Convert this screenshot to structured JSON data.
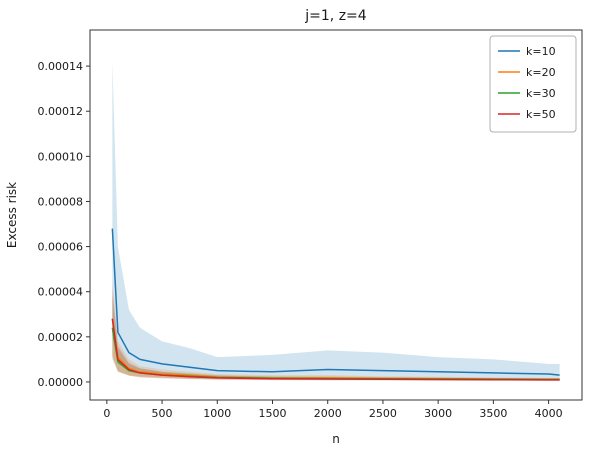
{
  "chart_data": {
    "type": "line",
    "title": "j=1, z=4",
    "xlabel": "n",
    "ylabel": "Excess risk",
    "xlim": [
      -152.5,
      4302.5
    ],
    "ylim": [
      -8e-06,
      0.000156
    ],
    "x_ticks": [
      0,
      500,
      1000,
      1500,
      2000,
      2500,
      3000,
      3500,
      4000
    ],
    "y_ticks": [
      0.0,
      2e-05,
      4e-05,
      6e-05,
      8e-05,
      0.0001,
      0.00012,
      0.00014
    ],
    "y_tick_labels": [
      "0.00000",
      "0.00002",
      "0.00004",
      "0.00006",
      "0.00008",
      "0.00010",
      "0.00012",
      "0.00014"
    ],
    "grid": false,
    "legend_position": "upper right",
    "axis_color": "#333333",
    "x": [
      50,
      100,
      200,
      300,
      500,
      750,
      1000,
      1500,
      2000,
      2500,
      3000,
      3500,
      4000,
      4100
    ],
    "series": [
      {
        "name": "k=10",
        "color": "#1f77b4",
        "values": [
          6.8e-05,
          2.2e-05,
          1.3e-05,
          1e-05,
          8e-06,
          6.5e-06,
          5e-06,
          4.5e-06,
          5.5e-06,
          5e-06,
          4.5e-06,
          4e-06,
          3.5e-06,
          3e-06
        ],
        "band_upper": [
          0.000142,
          6e-05,
          3.2e-05,
          2.4e-05,
          1.8e-05,
          1.5e-05,
          1.1e-05,
          1.2e-05,
          1.4e-05,
          1.3e-05,
          1.1e-05,
          1e-05,
          8e-06,
          8e-06
        ],
        "band_lower": [
          2e-05,
          8e-06,
          5e-06,
          4e-06,
          3e-06,
          2.5e-06,
          2e-06,
          1.5e-06,
          2e-06,
          2e-06,
          1.5e-06,
          1.5e-06,
          1e-06,
          1e-06
        ]
      },
      {
        "name": "k=20",
        "color": "#ff7f0e",
        "values": [
          2.8e-05,
          1.1e-05,
          6e-06,
          4.5e-06,
          3.5e-06,
          3e-06,
          2.2e-06,
          1.8e-06,
          1.8e-06,
          1.6e-06,
          1.5e-06,
          1.3e-06,
          1.2e-06,
          1.2e-06
        ],
        "band_upper": [
          4.5e-05,
          1.8e-05,
          1e-05,
          7e-06,
          5.5e-06,
          4.5e-06,
          3.5e-06,
          3e-06,
          3e-06,
          2.5e-06,
          2.3e-06,
          2e-06,
          1.8e-06,
          1.8e-06
        ],
        "band_lower": [
          1.2e-05,
          5e-06,
          3e-06,
          2.5e-06,
          2e-06,
          1.5e-06,
          1.2e-06,
          1e-06,
          1e-06,
          8e-07,
          8e-07,
          7e-07,
          6e-07,
          6e-07
        ]
      },
      {
        "name": "k=30",
        "color": "#2ca02c",
        "values": [
          2.4e-05,
          9e-06,
          5e-06,
          4e-06,
          3e-06,
          2.5e-06,
          2e-06,
          1.6e-06,
          1.5e-06,
          1.4e-06,
          1.3e-06,
          1.2e-06,
          1.1e-06,
          1.1e-06
        ],
        "band_upper": [
          3.8e-05,
          1.5e-05,
          8e-06,
          6e-06,
          4.5e-06,
          3.8e-06,
          3e-06,
          2.5e-06,
          2.4e-06,
          2.2e-06,
          2e-06,
          1.8e-06,
          1.7e-06,
          1.7e-06
        ],
        "band_lower": [
          1e-05,
          4.5e-06,
          2.8e-06,
          2.2e-06,
          1.8e-06,
          1.4e-06,
          1.1e-06,
          9e-07,
          8e-07,
          8e-07,
          7e-07,
          7e-07,
          6e-07,
          6e-07
        ]
      },
      {
        "name": "k=50",
        "color": "#d62728",
        "values": [
          2.8e-05,
          1e-05,
          5.5e-06,
          4e-06,
          3e-06,
          2.3e-06,
          1.8e-06,
          1.4e-06,
          1.3e-06,
          1.2e-06,
          1.1e-06,
          1e-06,
          9e-07,
          9e-07
        ],
        "band_upper": [
          4.2e-05,
          1.6e-05,
          8.5e-06,
          6e-06,
          4.5e-06,
          3.5e-06,
          2.8e-06,
          2.2e-06,
          2e-06,
          1.9e-06,
          1.7e-06,
          1.6e-06,
          1.5e-06,
          1.5e-06
        ],
        "band_lower": [
          1.1e-05,
          4.5e-06,
          2.8e-06,
          2e-06,
          1.6e-06,
          1.2e-06,
          1e-06,
          8e-07,
          7e-07,
          7e-07,
          6e-07,
          6e-07,
          5e-07,
          5e-07
        ]
      }
    ]
  }
}
